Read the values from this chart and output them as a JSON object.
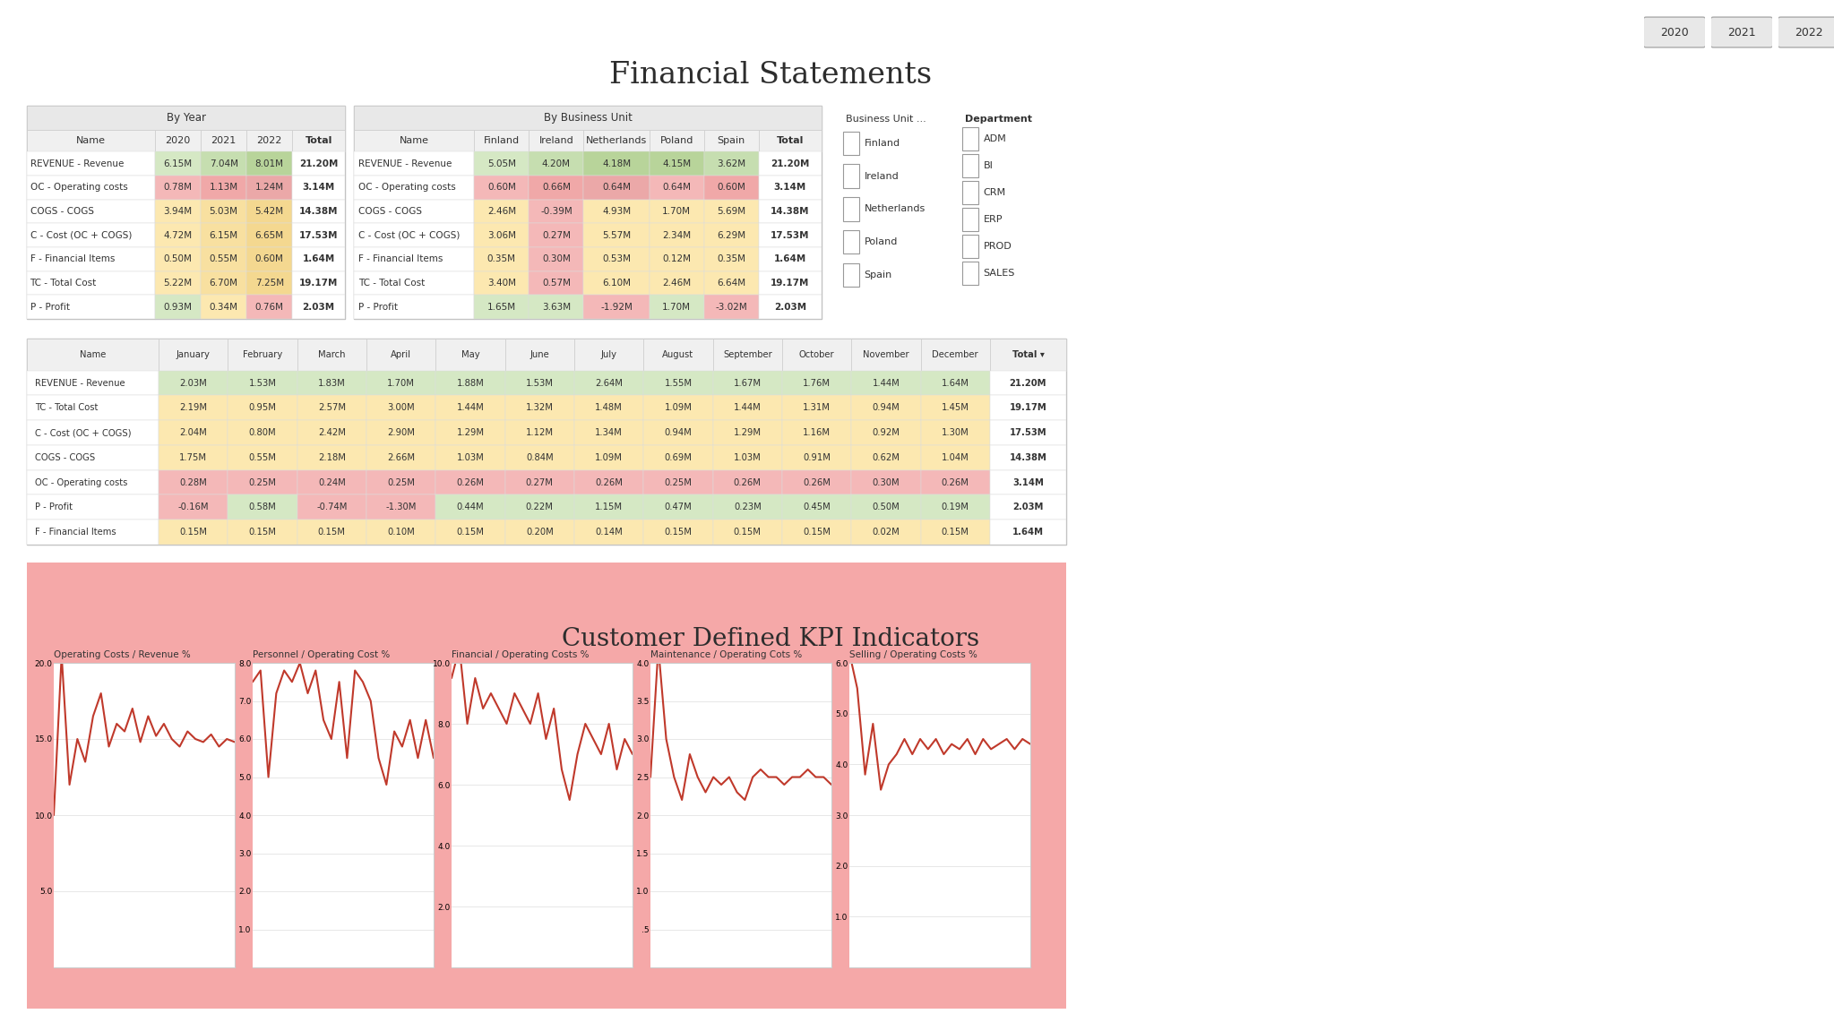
{
  "title": "Financial Statements",
  "year_buttons": [
    "2020",
    "2021",
    "2022"
  ],
  "by_year": {
    "header": "By Year",
    "columns": [
      "Name",
      "2020",
      "2021",
      "2022",
      "Total"
    ],
    "rows": [
      [
        "REVENUE - Revenue",
        "6.15M",
        "7.04M",
        "8.01M",
        "21.20M"
      ],
      [
        "OC - Operating costs",
        "0.78M",
        "1.13M",
        "1.24M",
        "3.14M"
      ],
      [
        "COGS - COGS",
        "3.94M",
        "5.03M",
        "5.42M",
        "14.38M"
      ],
      [
        "C - Cost (OC + COGS)",
        "4.72M",
        "6.15M",
        "6.65M",
        "17.53M"
      ],
      [
        "F - Financial Items",
        "0.50M",
        "0.55M",
        "0.60M",
        "1.64M"
      ],
      [
        "TC - Total Cost",
        "5.22M",
        "6.70M",
        "7.25M",
        "19.17M"
      ],
      [
        "P - Profit",
        "0.93M",
        "0.34M",
        "0.76M",
        "2.03M"
      ]
    ],
    "year_cell_colors": [
      [
        "#d5e8c4",
        "#c6deb0",
        "#b8d49a"
      ],
      [
        "#f4b8b8",
        "#f0a8a8",
        "#eba8a8"
      ],
      [
        "#fce8b0",
        "#f8e0a0",
        "#f4d890"
      ],
      [
        "#fce8b0",
        "#f8e0a0",
        "#f4d890"
      ],
      [
        "#fce8b0",
        "#f8e0a0",
        "#f4d890"
      ],
      [
        "#fce8b0",
        "#f8e0a0",
        "#f4d890"
      ],
      [
        "#d5e8c4",
        "#fce8b0",
        "#f4b8b8"
      ]
    ]
  },
  "by_business_unit": {
    "header": "By Business Unit",
    "columns": [
      "Name",
      "Finland",
      "Ireland",
      "Netherlands",
      "Poland",
      "Spain",
      "Total"
    ],
    "rows": [
      [
        "REVENUE - Revenue",
        "5.05M",
        "4.20M",
        "4.18M",
        "4.15M",
        "3.62M",
        "21.20M"
      ],
      [
        "OC - Operating costs",
        "0.60M",
        "0.66M",
        "0.64M",
        "0.64M",
        "0.60M",
        "3.14M"
      ],
      [
        "COGS - COGS",
        "2.46M",
        "-0.39M",
        "4.93M",
        "1.70M",
        "5.69M",
        "14.38M"
      ],
      [
        "C - Cost (OC + COGS)",
        "3.06M",
        "0.27M",
        "5.57M",
        "2.34M",
        "6.29M",
        "17.53M"
      ],
      [
        "F - Financial Items",
        "0.35M",
        "0.30M",
        "0.53M",
        "0.12M",
        "0.35M",
        "1.64M"
      ],
      [
        "TC - Total Cost",
        "3.40M",
        "0.57M",
        "6.10M",
        "2.46M",
        "6.64M",
        "19.17M"
      ],
      [
        "P - Profit",
        "1.65M",
        "3.63M",
        "-1.92M",
        "1.70M",
        "-3.02M",
        "2.03M"
      ]
    ],
    "bu_cell_colors": [
      [
        "#d5e8c4",
        "#c6deb0",
        "#b8d49a",
        "#b8d49a",
        "#c6deb0"
      ],
      [
        "#f4b8b8",
        "#f0a8a8",
        "#eba8a8",
        "#f4b8b8",
        "#f0a8a8"
      ],
      [
        "#fce8b0",
        "#f4b8b8",
        "#fce8b0",
        "#fce8b0",
        "#fce8b0"
      ],
      [
        "#fce8b0",
        "#f4b8b8",
        "#fce8b0",
        "#fce8b0",
        "#fce8b0"
      ],
      [
        "#fce8b0",
        "#f4b8b8",
        "#fce8b0",
        "#fce8b0",
        "#fce8b0"
      ],
      [
        "#fce8b0",
        "#f4b8b8",
        "#fce8b0",
        "#fce8b0",
        "#fce8b0"
      ],
      [
        "#d5e8c4",
        "#d5e8c4",
        "#f4b8b8",
        "#d5e8c4",
        "#f4b8b8"
      ]
    ]
  },
  "by_month": {
    "columns": [
      "Name",
      "January",
      "February",
      "March",
      "April",
      "May",
      "June",
      "July",
      "August",
      "September",
      "October",
      "November",
      "December",
      "Total"
    ],
    "rows": [
      [
        "REVENUE - Revenue",
        "2.03M",
        "1.53M",
        "1.83M",
        "1.70M",
        "1.88M",
        "1.53M",
        "2.64M",
        "1.55M",
        "1.67M",
        "1.76M",
        "1.44M",
        "1.64M",
        "21.20M"
      ],
      [
        "TC - Total Cost",
        "2.19M",
        "0.95M",
        "2.57M",
        "3.00M",
        "1.44M",
        "1.32M",
        "1.48M",
        "1.09M",
        "1.44M",
        "1.31M",
        "0.94M",
        "1.45M",
        "19.17M"
      ],
      [
        "C - Cost (OC + COGS)",
        "2.04M",
        "0.80M",
        "2.42M",
        "2.90M",
        "1.29M",
        "1.12M",
        "1.34M",
        "0.94M",
        "1.29M",
        "1.16M",
        "0.92M",
        "1.30M",
        "17.53M"
      ],
      [
        "COGS - COGS",
        "1.75M",
        "0.55M",
        "2.18M",
        "2.66M",
        "1.03M",
        "0.84M",
        "1.09M",
        "0.69M",
        "1.03M",
        "0.91M",
        "0.62M",
        "1.04M",
        "14.38M"
      ],
      [
        "OC - Operating costs",
        "0.28M",
        "0.25M",
        "0.24M",
        "0.25M",
        "0.26M",
        "0.27M",
        "0.26M",
        "0.25M",
        "0.26M",
        "0.26M",
        "0.30M",
        "0.26M",
        "3.14M"
      ],
      [
        "P - Profit",
        "-0.16M",
        "0.58M",
        "-0.74M",
        "-1.30M",
        "0.44M",
        "0.22M",
        "1.15M",
        "0.47M",
        "0.23M",
        "0.45M",
        "0.50M",
        "0.19M",
        "2.03M"
      ],
      [
        "F - Financial Items",
        "0.15M",
        "0.15M",
        "0.15M",
        "0.10M",
        "0.15M",
        "0.20M",
        "0.14M",
        "0.15M",
        "0.15M",
        "0.15M",
        "0.02M",
        "0.15M",
        "1.64M"
      ]
    ],
    "row_base_colors": {
      "REVENUE - Revenue": "#d5e8c4",
      "TC - Total Cost": "#fce8b0",
      "C - Cost (OC + COGS)": "#fce8b0",
      "COGS - COGS": "#fce8b0",
      "OC - Operating costs": "#f4b8b8",
      "P - Profit": "#d5e8c4",
      "F - Financial Items": "#fce8b0"
    }
  },
  "business_unit_filter": {
    "title": "Business Unit ...",
    "items": [
      "Finland",
      "Ireland",
      "Netherlands",
      "Poland",
      "Spain"
    ]
  },
  "department_filter": {
    "title": "Department",
    "items": [
      "ADM",
      "BI",
      "CRM",
      "ERP",
      "PROD",
      "SALES"
    ]
  },
  "kpi_section": {
    "title": "Customer Defined KPI Indicators",
    "bg_color": "#f5a8a8",
    "charts": [
      {
        "title": "Operating Costs / Revenue %",
        "ylim": [
          0,
          20
        ],
        "ytick_labels": [
          "",
          "5.0",
          "10.0",
          "15.0",
          "20.0"
        ],
        "yticks": [
          0,
          5.0,
          10.0,
          15.0,
          20.0
        ],
        "data": [
          10.0,
          20.5,
          12.0,
          15.0,
          13.5,
          16.5,
          18.0,
          14.5,
          16.0,
          15.5,
          17.0,
          14.8,
          16.5,
          15.2,
          16.0,
          15.0,
          14.5,
          15.5,
          15.0,
          14.8,
          15.3,
          14.5,
          15.0,
          14.8
        ]
      },
      {
        "title": "Personnel / Operating Cost %",
        "ylim": [
          0,
          8
        ],
        "ytick_labels": [
          "",
          "1.0",
          "2.0",
          "3.0",
          "4.0",
          "5.0",
          "6.0",
          "7.0",
          "8.0"
        ],
        "yticks": [
          0,
          1.0,
          2.0,
          3.0,
          4.0,
          5.0,
          6.0,
          7.0,
          8.0
        ],
        "data": [
          7.5,
          7.8,
          5.0,
          7.2,
          7.8,
          7.5,
          8.0,
          7.2,
          7.8,
          6.5,
          6.0,
          7.5,
          5.5,
          7.8,
          7.5,
          7.0,
          5.5,
          4.8,
          6.2,
          5.8,
          6.5,
          5.5,
          6.5,
          5.5
        ]
      },
      {
        "title": "Financial / Operating Costs %",
        "ylim": [
          0,
          10
        ],
        "ytick_labels": [
          "",
          "2.0",
          "4.0",
          "6.0",
          "8.0",
          "10.0"
        ],
        "yticks": [
          0,
          2.0,
          4.0,
          6.0,
          8.0,
          10.0
        ],
        "data": [
          9.5,
          10.5,
          8.0,
          9.5,
          8.5,
          9.0,
          8.5,
          8.0,
          9.0,
          8.5,
          8.0,
          9.0,
          7.5,
          8.5,
          6.5,
          5.5,
          7.0,
          8.0,
          7.5,
          7.0,
          8.0,
          6.5,
          7.5,
          7.0
        ]
      },
      {
        "title": "Maintenance / Operating Cots %",
        "ylim": [
          0,
          4
        ],
        "ytick_labels": [
          "",
          ".5",
          "1.0",
          "1.5",
          "2.0",
          "2.5",
          "3.0",
          "3.5",
          "4.0"
        ],
        "yticks": [
          0,
          0.5,
          1.0,
          1.5,
          2.0,
          2.5,
          3.0,
          3.5,
          4.0
        ],
        "data": [
          2.5,
          4.2,
          3.0,
          2.5,
          2.2,
          2.8,
          2.5,
          2.3,
          2.5,
          2.4,
          2.5,
          2.3,
          2.2,
          2.5,
          2.6,
          2.5,
          2.5,
          2.4,
          2.5,
          2.5,
          2.6,
          2.5,
          2.5,
          2.4
        ]
      },
      {
        "title": "Selling / Operating Costs %",
        "ylim": [
          0,
          6
        ],
        "ytick_labels": [
          "",
          "1.0",
          "2.0",
          "3.0",
          "4.0",
          "5.0",
          "6.0"
        ],
        "yticks": [
          0,
          1.0,
          2.0,
          3.0,
          4.0,
          5.0,
          6.0
        ],
        "data": [
          6.2,
          5.5,
          3.8,
          4.8,
          3.5,
          4.0,
          4.2,
          4.5,
          4.2,
          4.5,
          4.3,
          4.5,
          4.2,
          4.4,
          4.3,
          4.5,
          4.2,
          4.5,
          4.3,
          4.4,
          4.5,
          4.3,
          4.5,
          4.4
        ]
      }
    ]
  }
}
